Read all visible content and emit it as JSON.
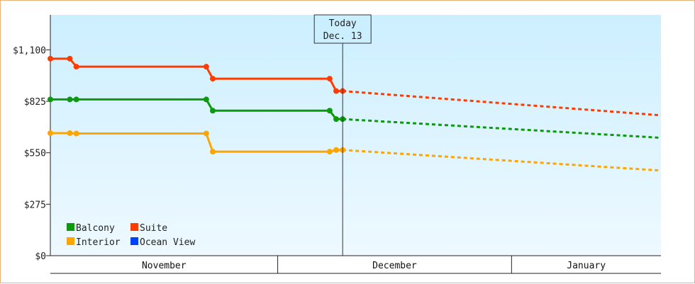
{
  "chart_data": {
    "type": "line",
    "title": "",
    "xlabel": "",
    "ylabel": "",
    "ylim": [
      0,
      1287
    ],
    "y_ticks": [
      {
        "value": 0,
        "label": "$0"
      },
      {
        "value": 275,
        "label": "$275"
      },
      {
        "value": 550,
        "label": "$550"
      },
      {
        "value": 825,
        "label": "$825"
      },
      {
        "value": 1100,
        "label": "$1,100"
      }
    ],
    "x_domain": [
      "2023-10-29",
      "2024-01-31"
    ],
    "months": [
      {
        "label": "November",
        "start": "2023-10-29",
        "end": "2023-12-03"
      },
      {
        "label": "December",
        "start": "2023-12-03",
        "end": "2024-01-08"
      },
      {
        "label": "January",
        "start": "2024-01-08",
        "end": "2024-01-31"
      }
    ],
    "today": {
      "line1": "Today",
      "line2": "Dec. 13",
      "date": "2023-12-13"
    },
    "grid": false,
    "legend_position": "bottom-left",
    "background_gradient": [
      "#ccefff",
      "#eef9ff"
    ],
    "series": [
      {
        "name": "Suite",
        "color": "#ff3c00",
        "points": [
          {
            "x": "2023-10-29",
            "y": 1053
          },
          {
            "x": "2023-11-01",
            "y": 1053
          },
          {
            "x": "2023-11-02",
            "y": 1010
          },
          {
            "x": "2023-11-22",
            "y": 1010
          },
          {
            "x": "2023-11-23",
            "y": 946
          },
          {
            "x": "2023-12-11",
            "y": 946
          },
          {
            "x": "2023-12-12",
            "y": 880
          },
          {
            "x": "2023-12-13",
            "y": 880
          }
        ],
        "forecast": [
          {
            "x": "2023-12-13",
            "y": 880
          },
          {
            "x": "2024-01-31",
            "y": 750
          }
        ]
      },
      {
        "name": "Balcony",
        "color": "#0c9a0c",
        "points": [
          {
            "x": "2023-10-29",
            "y": 835
          },
          {
            "x": "2023-11-01",
            "y": 835
          },
          {
            "x": "2023-11-02",
            "y": 835
          },
          {
            "x": "2023-11-22",
            "y": 835
          },
          {
            "x": "2023-11-23",
            "y": 775
          },
          {
            "x": "2023-12-11",
            "y": 775
          },
          {
            "x": "2023-12-12",
            "y": 730
          },
          {
            "x": "2023-12-13",
            "y": 730
          }
        ],
        "forecast": [
          {
            "x": "2023-12-13",
            "y": 730
          },
          {
            "x": "2024-01-31",
            "y": 630
          }
        ]
      },
      {
        "name": "Interior",
        "color": "#ffa500",
        "points": [
          {
            "x": "2023-10-29",
            "y": 655
          },
          {
            "x": "2023-11-01",
            "y": 655
          },
          {
            "x": "2023-11-02",
            "y": 653
          },
          {
            "x": "2023-11-22",
            "y": 653
          },
          {
            "x": "2023-11-23",
            "y": 556
          },
          {
            "x": "2023-12-11",
            "y": 556
          },
          {
            "x": "2023-12-12",
            "y": 565
          },
          {
            "x": "2023-12-13",
            "y": 565
          }
        ],
        "forecast": [
          {
            "x": "2023-12-13",
            "y": 565
          },
          {
            "x": "2024-01-31",
            "y": 455
          }
        ]
      },
      {
        "name": "Ocean View",
        "color": "#0040ff",
        "points": [],
        "forecast": []
      }
    ],
    "legend": [
      {
        "name": "Balcony",
        "color": "#0c9a0c"
      },
      {
        "name": "Suite",
        "color": "#ff3c00"
      },
      {
        "name": "Interior",
        "color": "#ffa500"
      },
      {
        "name": "Ocean View",
        "color": "#0040ff"
      }
    ]
  }
}
